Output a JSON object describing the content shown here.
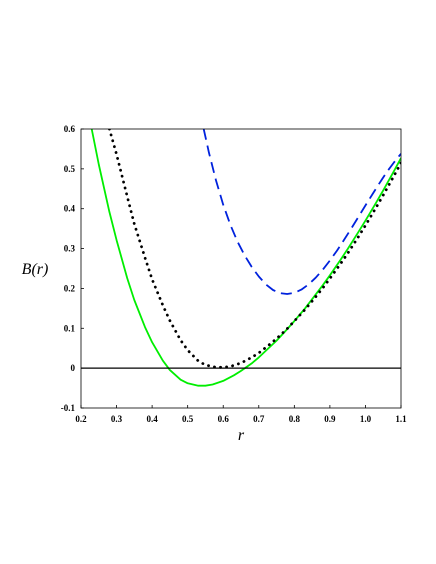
{
  "chart_data": {
    "type": "line",
    "title": "",
    "xlabel": "r",
    "ylabel": "B(r)",
    "xlim": [
      0.2,
      1.1
    ],
    "ylim": [
      -0.1,
      0.6
    ],
    "x_ticks": [
      0.2,
      0.3,
      0.4,
      0.5,
      0.6,
      0.7,
      0.8,
      0.9,
      1.0,
      1.1
    ],
    "x_tick_labels": [
      "0.2",
      "0.3",
      "0.4",
      "0.5",
      "0.6",
      "0.7",
      "0.8",
      "0.9",
      "1.0",
      "1.1"
    ],
    "y_ticks": [
      -0.1,
      0,
      0.1,
      0.2,
      0.3,
      0.4,
      0.5,
      0.6
    ],
    "y_tick_labels": [
      "-0.1",
      "0",
      "0.1",
      "0.2",
      "0.3",
      "0.4",
      "0.5",
      "0.6"
    ],
    "grid": false,
    "legend": "none",
    "reference_line": {
      "y": 0,
      "color": "#000000"
    },
    "series": [
      {
        "style": "solid",
        "color": "#00ee00",
        "x": [
          0.23,
          0.25,
          0.28,
          0.3,
          0.33,
          0.35,
          0.38,
          0.4,
          0.43,
          0.45,
          0.48,
          0.5,
          0.53,
          0.55,
          0.57,
          0.6,
          0.63,
          0.65,
          0.68,
          0.7,
          0.73,
          0.75,
          0.78,
          0.8,
          0.83,
          0.85,
          0.88,
          0.9,
          0.93,
          0.95,
          0.98,
          1.0,
          1.03,
          1.05,
          1.08,
          1.1
        ],
        "y": [
          0.6,
          0.511,
          0.392,
          0.321,
          0.226,
          0.171,
          0.103,
          0.065,
          0.019,
          -0.005,
          -0.029,
          -0.038,
          -0.044,
          -0.044,
          -0.041,
          -0.032,
          -0.018,
          -0.007,
          0.012,
          0.027,
          0.052,
          0.069,
          0.098,
          0.118,
          0.15,
          0.173,
          0.208,
          0.233,
          0.272,
          0.299,
          0.341,
          0.37,
          0.415,
          0.446,
          0.494,
          0.527
        ]
      },
      {
        "style": "dotted",
        "color": "#000000",
        "x": [
          0.28,
          0.3,
          0.33,
          0.35,
          0.38,
          0.4,
          0.43,
          0.45,
          0.48,
          0.5,
          0.53,
          0.55,
          0.58,
          0.6,
          0.62,
          0.65,
          0.68,
          0.7,
          0.73,
          0.75,
          0.78,
          0.8,
          0.83,
          0.85,
          0.88,
          0.9,
          0.93,
          0.95,
          0.98,
          1.0,
          1.03,
          1.05,
          1.08,
          1.1
        ],
        "y": [
          0.6,
          0.536,
          0.431,
          0.362,
          0.277,
          0.223,
          0.158,
          0.119,
          0.07,
          0.045,
          0.018,
          0.008,
          0.002,
          0.002,
          0.004,
          0.013,
          0.027,
          0.038,
          0.059,
          0.074,
          0.099,
          0.118,
          0.147,
          0.168,
          0.201,
          0.225,
          0.262,
          0.288,
          0.329,
          0.358,
          0.403,
          0.434,
          0.482,
          0.515
        ]
      },
      {
        "style": "dashed",
        "color": "#0022dd",
        "x": [
          0.545,
          0.56,
          0.58,
          0.6,
          0.62,
          0.64,
          0.66,
          0.68,
          0.7,
          0.72,
          0.74,
          0.76,
          0.78,
          0.8,
          0.82,
          0.84,
          0.86,
          0.88,
          0.9,
          0.92,
          0.94,
          0.96,
          0.98,
          1.0,
          1.02,
          1.04,
          1.06,
          1.08,
          1.1
        ],
        "y": [
          0.6,
          0.54,
          0.47,
          0.41,
          0.36,
          0.318,
          0.283,
          0.254,
          0.23,
          0.21,
          0.196,
          0.188,
          0.186,
          0.189,
          0.197,
          0.21,
          0.227,
          0.247,
          0.27,
          0.295,
          0.322,
          0.35,
          0.379,
          0.408,
          0.437,
          0.465,
          0.492,
          0.516,
          0.538
        ]
      }
    ]
  }
}
